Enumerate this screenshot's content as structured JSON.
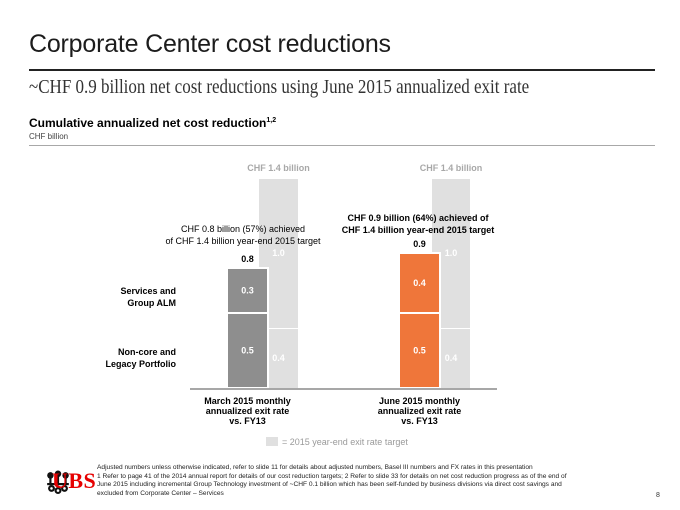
{
  "header": {
    "title": "Corporate Center cost reductions",
    "subtitle": "~CHF 0.9 billion net cost reductions using June 2015 annualized exit rate"
  },
  "section": {
    "heading": "Cumulative annualized net cost reduction",
    "heading_superscript": "1,2",
    "unit": "CHF billion"
  },
  "colors": {
    "march_bar": "#8e8e8e",
    "june_bar": "#ef763a",
    "target_bar": "#e0e0e0",
    "target_label": "#a8a8a8",
    "brand_red": "#e60000"
  },
  "chart_data": {
    "type": "bar",
    "stacked": true,
    "title": "Cumulative annualized net cost reduction",
    "ylabel": "CHF billion",
    "categories": [
      "March 2015 monthly annualized exit rate vs. FY13",
      "June 2015 monthly annualized exit rate vs. FY13"
    ],
    "category_lines": [
      [
        "March 2015 monthly",
        "annualized exit rate",
        "vs. FY13"
      ],
      [
        "June 2015 monthly",
        "annualized exit rate",
        "vs. FY13"
      ]
    ],
    "series": [
      {
        "name": "Non-core and Legacy Portfolio",
        "name_lines": [
          "Non-core and",
          "Legacy Portfolio"
        ],
        "values": [
          0.5,
          0.5
        ],
        "labels": [
          "0.5",
          "0.5"
        ]
      },
      {
        "name": "Services and Group ALM",
        "name_lines": [
          "Services and",
          "Group ALM"
        ],
        "values": [
          0.3,
          0.4
        ],
        "labels": [
          "0.3",
          "0.4"
        ]
      }
    ],
    "totals": [
      0.8,
      0.9
    ],
    "total_labels": [
      "0.8",
      "0.9"
    ],
    "target": {
      "name": "2015 year-end exit rate target",
      "segments": [
        {
          "value": 0.4,
          "label": "0.4"
        },
        {
          "value": 1.0,
          "label": "1.0"
        }
      ],
      "total": 1.4,
      "total_label": "CHF 1.4 billion"
    },
    "annotations": [
      {
        "lines": [
          "CHF 0.8 billion (57%) achieved",
          "of CHF 1.4 billion year-end 2015 target"
        ],
        "bold": false
      },
      {
        "lines": [
          "CHF 0.9 billion (64%) achieved of",
          "CHF 1.4 billion year-end 2015 target"
        ],
        "bold": true
      }
    ],
    "legend": {
      "label": "= 2015 year-end exit rate target",
      "placement": "bottom-center"
    },
    "ylim": [
      0,
      1.4
    ],
    "grid": false
  },
  "footer": {
    "brand": "UBS",
    "footnotes": [
      "Adjusted numbers unless otherwise indicated, refer to slide 11 for details about adjusted numbers, Basel III numbers and FX rates in this presentation",
      "1 Refer to page 41 of the 2014 annual report for details of our cost reduction targets; 2 Refer to slide 33 for details on net cost reduction progress as of the end of",
      "June 2015 including incremental Group Technology investment of ~CHF 0.1 billion which has been self-funded by business divisions via direct cost savings and",
      "excluded from Corporate Center – Services"
    ],
    "page_number": "8"
  }
}
